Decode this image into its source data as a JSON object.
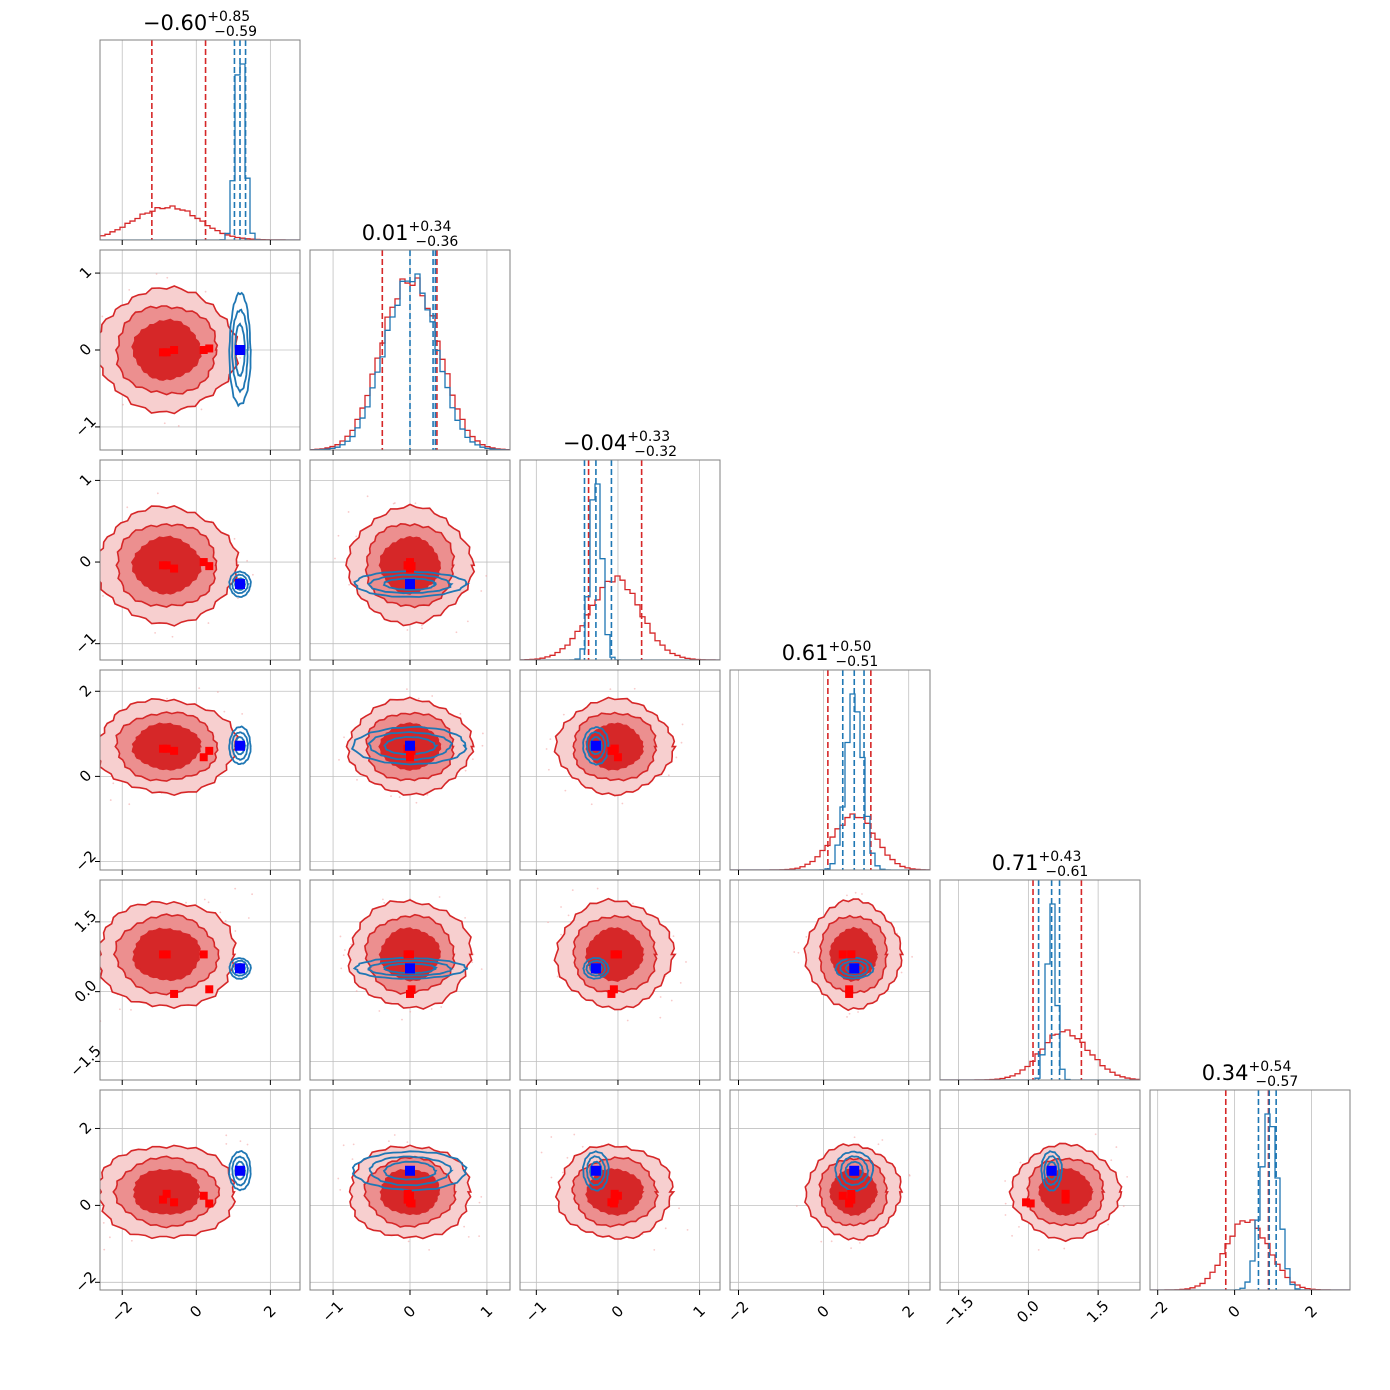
{
  "chart_data": {
    "type": "corner",
    "n_params": 6,
    "colors": {
      "red": "#d62728",
      "blue": "#1f77b4",
      "marker_red": "#ff0000",
      "marker_blue": "#0000ff",
      "grid": "#c0c0c0",
      "frame": "#808080"
    },
    "grid": true,
    "axes": [
      {
        "range": [
          -2.6,
          2.8
        ],
        "ticks": [
          -2,
          0,
          2
        ],
        "tick_labels": [
          "−2",
          "0",
          "2"
        ]
      },
      {
        "range": [
          -1.3,
          1.3
        ],
        "ticks": [
          -1,
          0,
          1
        ],
        "tick_labels": [
          "−1",
          "0",
          "1"
        ]
      },
      {
        "range": [
          -1.2,
          1.25
        ],
        "ticks": [
          -1,
          0,
          1
        ],
        "tick_labels": [
          "−1",
          "0",
          "1"
        ]
      },
      {
        "range": [
          -2.2,
          2.5
        ],
        "ticks": [
          -2,
          0,
          2
        ],
        "tick_labels": [
          "−2",
          "0",
          "2"
        ]
      },
      {
        "range": [
          -1.9,
          2.4
        ],
        "ticks": [
          -1.5,
          0.0,
          1.5
        ],
        "tick_labels": [
          "−1.5",
          "0.0",
          "1.5"
        ]
      },
      {
        "range": [
          -2.2,
          3.0
        ],
        "ticks": [
          -2,
          0,
          2
        ],
        "tick_labels": [
          "−2",
          "0",
          "2"
        ]
      }
    ],
    "titles": [
      {
        "value": "−0.60",
        "plus": "+0.85",
        "minus": "−0.59"
      },
      {
        "value": "0.01",
        "plus": "+0.34",
        "minus": "−0.36"
      },
      {
        "value": "−0.04",
        "plus": "+0.33",
        "minus": "−0.32"
      },
      {
        "value": "0.61",
        "plus": "+0.50",
        "minus": "−0.51"
      },
      {
        "value": "0.71",
        "plus": "+0.43",
        "minus": "−0.61"
      },
      {
        "value": "0.34",
        "plus": "+0.54",
        "minus": "−0.57"
      }
    ],
    "series": [
      {
        "color": "red",
        "mean": [
          -0.8,
          0.0,
          -0.04,
          0.7,
          0.8,
          0.35
        ],
        "sigma": [
          0.85,
          0.36,
          0.32,
          0.5,
          0.52,
          0.55
        ],
        "quantiles": [
          [
            -1.2,
            0.25
          ],
          [
            -0.36,
            0.35
          ],
          [
            -0.36,
            0.29
          ],
          [
            0.1,
            1.11
          ],
          [
            0.1,
            1.14
          ],
          [
            -0.23,
            0.88
          ]
        ],
        "markers": [
          [
            -0.8,
            -0.03,
            -0.04,
            0.65,
            0.8,
            0.3
          ],
          [
            -0.6,
            0.0,
            -0.08,
            0.6,
            -0.05,
            0.08
          ],
          [
            0.2,
            0.0,
            0.0,
            0.45,
            0.8,
            0.25
          ],
          [
            0.35,
            0.02,
            -0.05,
            0.6,
            0.05,
            0.05
          ],
          [
            -0.9,
            -0.03,
            -0.04,
            0.65,
            0.8,
            0.15
          ]
        ]
      },
      {
        "color": "blue",
        "mean": [
          1.18,
          0.0,
          -0.27,
          0.72,
          0.5,
          0.9
        ],
        "sigma": [
          0.13,
          0.33,
          0.07,
          0.2,
          0.1,
          0.23
        ],
        "quantiles": [
          [
            1.03,
            1.33
          ],
          [
            0.3,
            0.33
          ],
          [
            -0.41,
            -0.08
          ],
          [
            0.45,
            0.95
          ],
          [
            0.22,
            0.67
          ],
          [
            0.62,
            1.08
          ]
        ],
        "truth": [
          1.18,
          0.0,
          -0.27,
          0.72,
          0.5,
          0.9
        ]
      }
    ]
  }
}
